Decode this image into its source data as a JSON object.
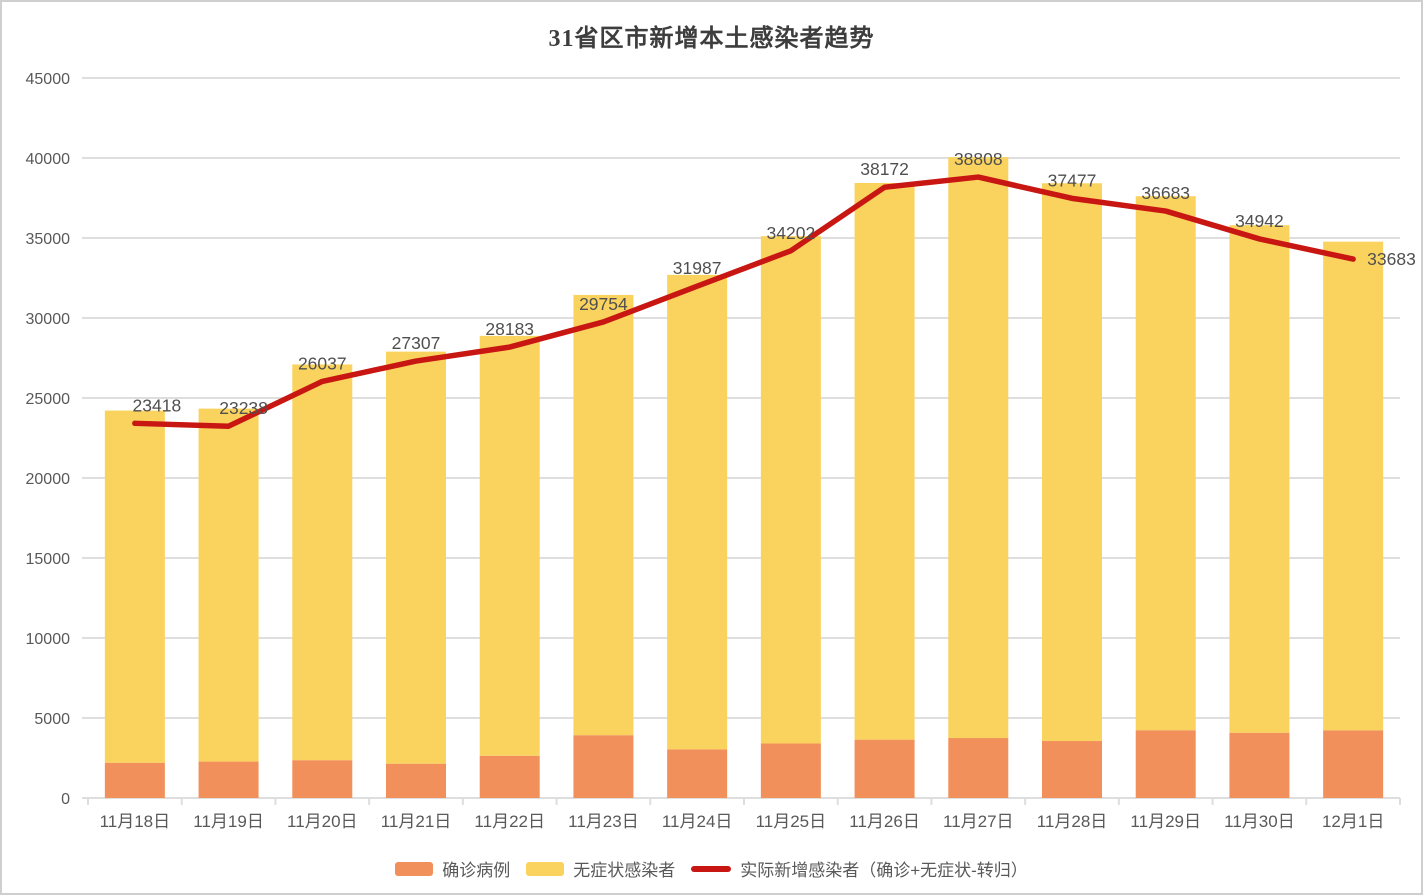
{
  "title": "31省区市新增本土感染者趋势",
  "colors": {
    "confirmed": "#F1905A",
    "asymptomatic": "#FAD35E",
    "line": "#C81712",
    "grid": "#DEDEDE",
    "axis_text": "#595959",
    "label_text": "#4f4f4f",
    "title_text": "#3d3d3d",
    "border": "#cfcfcf"
  },
  "chart_data": {
    "type": "bar",
    "subtype": "stacked-bars-with-line-overlay",
    "title": "31省区市新增本土感染者趋势",
    "xlabel": "",
    "ylabel": "",
    "ylim": [
      0,
      45000
    ],
    "ytick_step": 5000,
    "ytick_labels": [
      "0",
      "5000",
      "10000",
      "15000",
      "20000",
      "25000",
      "30000",
      "35000",
      "40000",
      "45000"
    ],
    "grid": true,
    "legend_position": "bottom",
    "categories": [
      "11月18日",
      "11月19日",
      "11月20日",
      "11月21日",
      "11月22日",
      "11月23日",
      "11月24日",
      "11月25日",
      "11月26日",
      "11月27日",
      "11月28日",
      "11月29日",
      "11月30日",
      "12月1日"
    ],
    "series": [
      {
        "name": "确诊病例",
        "type": "bar",
        "stack": true,
        "values": [
          2204,
          2277,
          2365,
          2145,
          2641,
          3927,
          3041,
          3405,
          3648,
          3748,
          3561,
          4236,
          4080,
          4233
        ]
      },
      {
        "name": "无症状感染者",
        "type": "bar",
        "stack": true,
        "values": [
          22011,
          22059,
          24730,
          25754,
          26242,
          27517,
          29654,
          31709,
          34790,
          36304,
          34860,
          33376,
          31720,
          30539
        ]
      },
      {
        "name": "实际新增感染者（确诊+无症状-转归）",
        "type": "line",
        "values": [
          23418,
          23238,
          26037,
          27307,
          28183,
          29754,
          31987,
          34202,
          38172,
          38808,
          37477,
          36683,
          34942,
          33683
        ],
        "data_labels_visible": true
      }
    ]
  }
}
